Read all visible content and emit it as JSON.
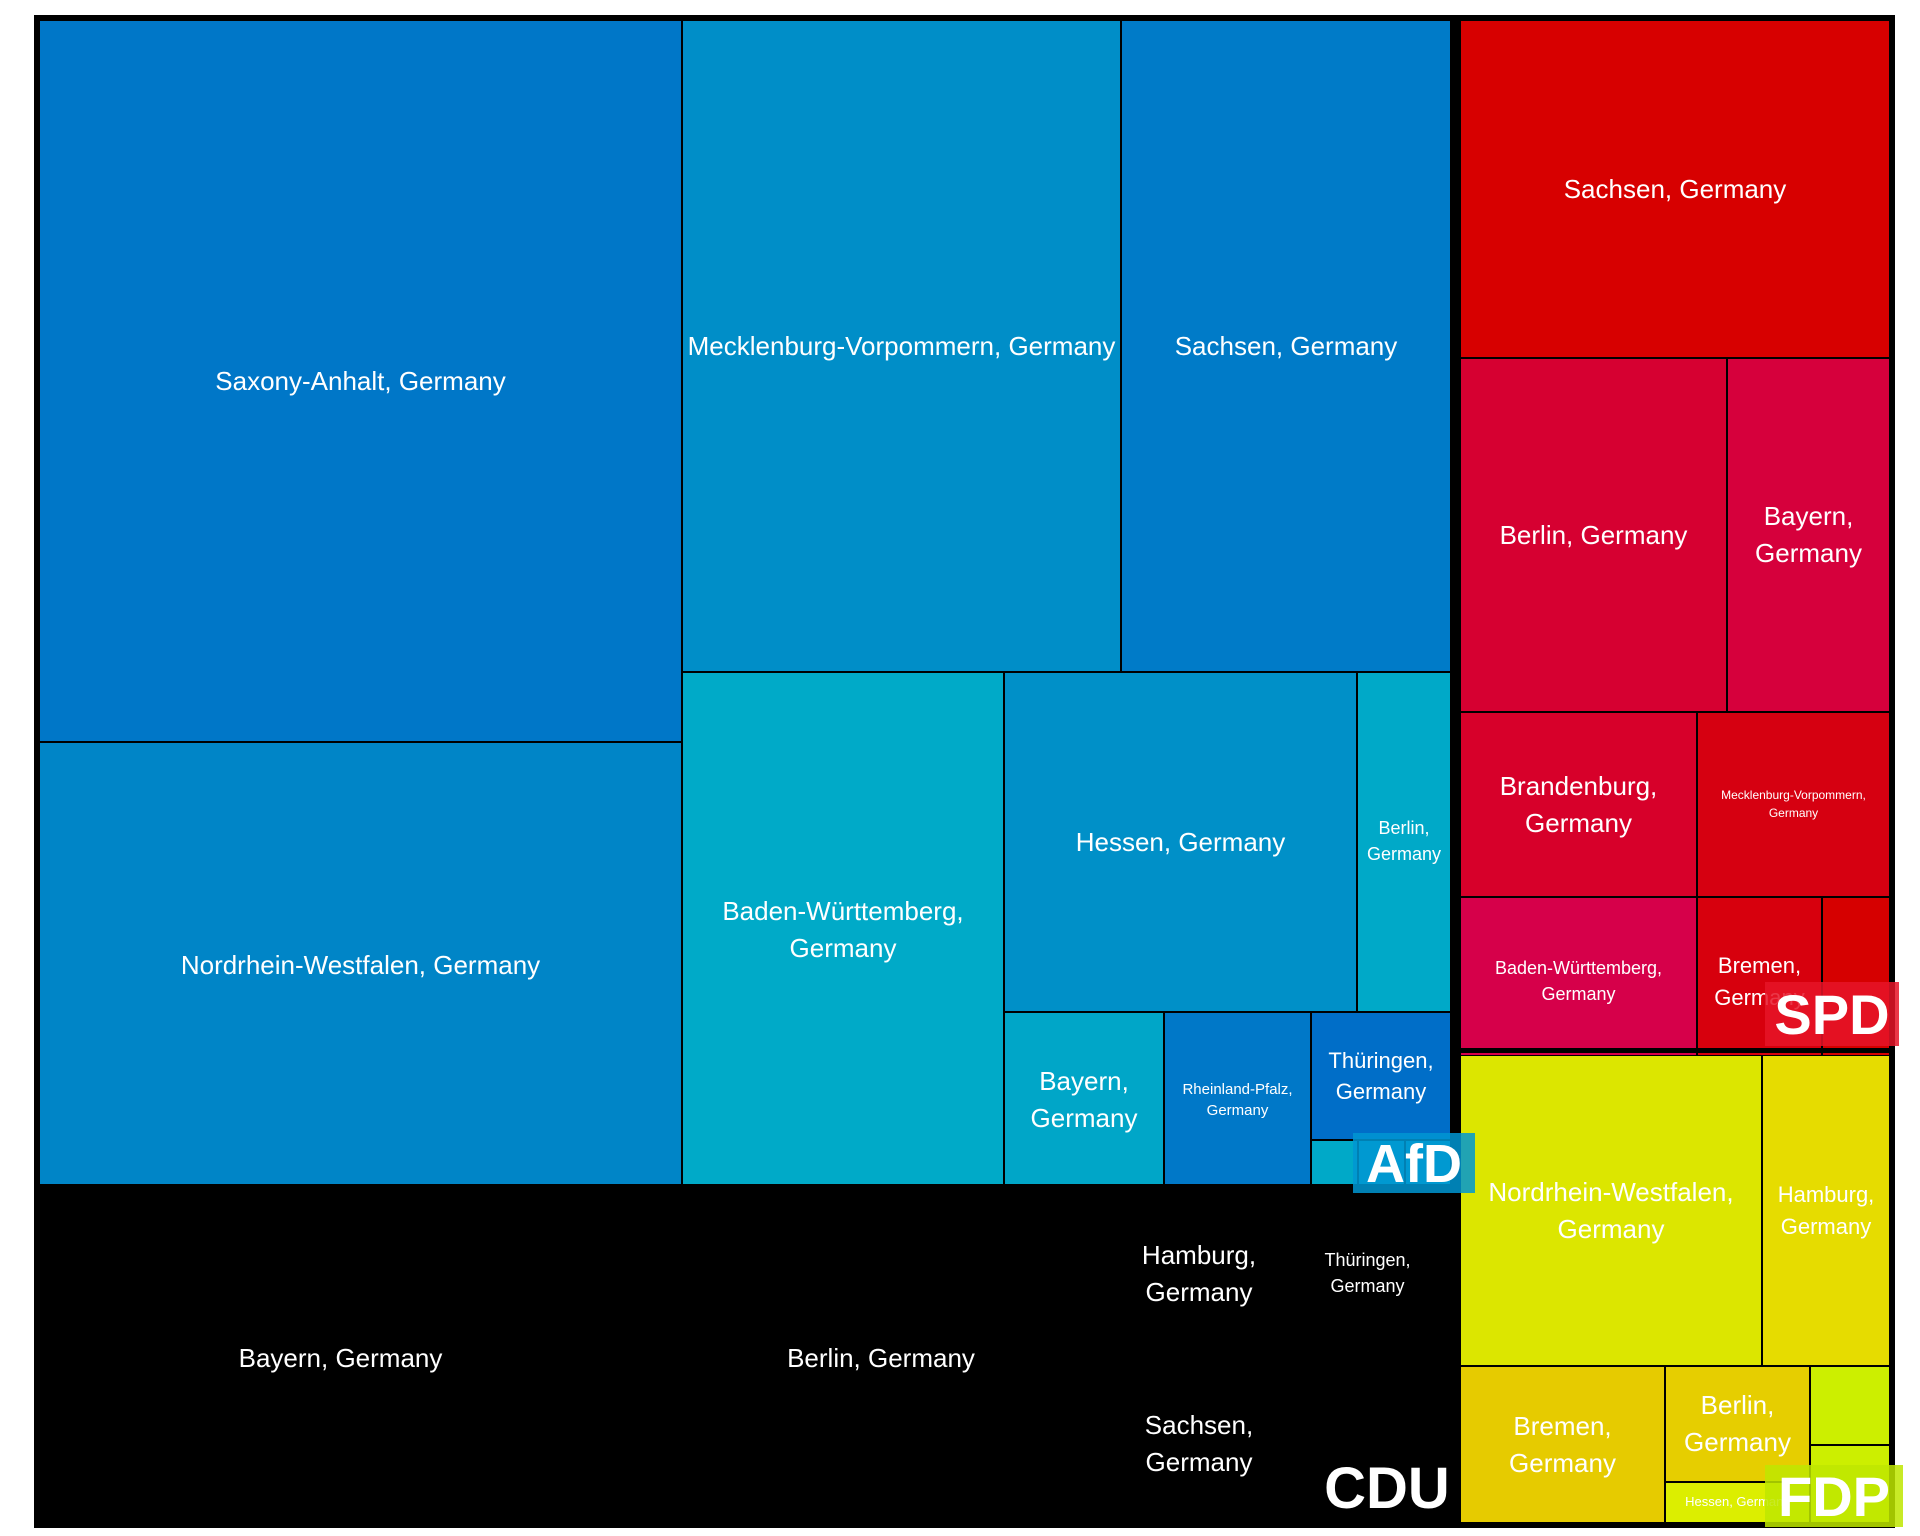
{
  "chart_data": {
    "type": "treemap",
    "title": "",
    "groups": [
      {
        "party": "AfD",
        "label": "AfD",
        "color": "#0077c8",
        "items": [
          {
            "name": "Saxony-Anhalt, Germany",
            "value": 316000,
            "color": "#0077c8"
          },
          {
            "name": "Nordrhein-Westfalen, Germany",
            "value": 196000,
            "color": "#0085c7"
          },
          {
            "name": "Mecklenburg-Vorpommern, Germany",
            "value": 196000,
            "color": "#008ec8"
          },
          {
            "name": "Sachsen, Germany",
            "value": 149000,
            "color": "#007bc8"
          },
          {
            "name": "Baden-Württemberg, Germany",
            "value": 89000,
            "color": "#00aac8"
          },
          {
            "name": "Hessen, Germany",
            "value": 83000,
            "color": "#0090c8"
          },
          {
            "name": "Berlin, Germany",
            "value": 22000,
            "color": "#00a9c8"
          },
          {
            "name": "Bayern, Germany",
            "value": 17000,
            "color": "#00a6c8"
          },
          {
            "name": "Rheinland-Pfalz, Germany",
            "value": 17000,
            "color": "#0078c8"
          },
          {
            "name": "Thüringen, Germany",
            "value": 10000,
            "color": "#006ec8"
          },
          {
            "name": "",
            "value": 1300,
            "color": "#00a9c8"
          },
          {
            "name": "",
            "value": 900,
            "color": "#00a9c8"
          },
          {
            "name": "",
            "value": 700,
            "color": "#00a9c8"
          }
        ]
      },
      {
        "party": "CDU",
        "label": "CDU",
        "color": "#000000",
        "items": [
          {
            "name": "Bayern, Germany",
            "value": 309000,
            "color": "#000000"
          },
          {
            "name": "Berlin, Germany",
            "value": 228000,
            "color": "#000000"
          },
          {
            "name": "Hamburg, Germany",
            "value": 31000,
            "color": "#000000"
          },
          {
            "name": "Sachsen, Germany",
            "value": 31000,
            "color": "#000000"
          },
          {
            "name": "Thüringen, Germany",
            "value": 31000,
            "color": "#000000"
          }
        ]
      },
      {
        "party": "SPD",
        "label": "SPD",
        "color": "#d70000",
        "items": [
          {
            "name": "Sachsen, Germany",
            "value": 103000,
            "color": "#d70000"
          },
          {
            "name": "Berlin, Germany",
            "value": 73000,
            "color": "#d60031"
          },
          {
            "name": "Bayern, Germany",
            "value": 44000,
            "color": "#d6003c"
          },
          {
            "name": "Brandenburg, Germany",
            "value": 31000,
            "color": "#d7002a"
          },
          {
            "name": "Mecklenburg-Vorpommern, Germany",
            "value": 24000,
            "color": "#d60011"
          },
          {
            "name": "Baden-Württemberg, Germany",
            "value": 31000,
            "color": "#d6004a"
          },
          {
            "name": "Bremen, Germany",
            "value": 15000,
            "color": "#d7000d"
          },
          {
            "name": "",
            "value": 7000,
            "color": "#d60000"
          }
        ]
      },
      {
        "party": "FDP",
        "label": "FDP",
        "color": "#dce600",
        "items": [
          {
            "name": "Nordrhein-Westfalen, Germany",
            "value": 70000,
            "color": "#dce600"
          },
          {
            "name": "Hamburg, Germany",
            "value": 36000,
            "color": "#e6dc00"
          },
          {
            "name": "Bremen, Germany",
            "value": 29000,
            "color": "#e6cb00"
          },
          {
            "name": "Berlin, Germany",
            "value": 18000,
            "color": "#e6ce00"
          },
          {
            "name": "Hessen, Germany",
            "value": 5400,
            "color": "#dcee00"
          },
          {
            "name": "",
            "value": 5400,
            "color": "#ccef00"
          },
          {
            "name": "",
            "value": 4000,
            "color": "#ccef00"
          }
        ]
      }
    ]
  }
}
